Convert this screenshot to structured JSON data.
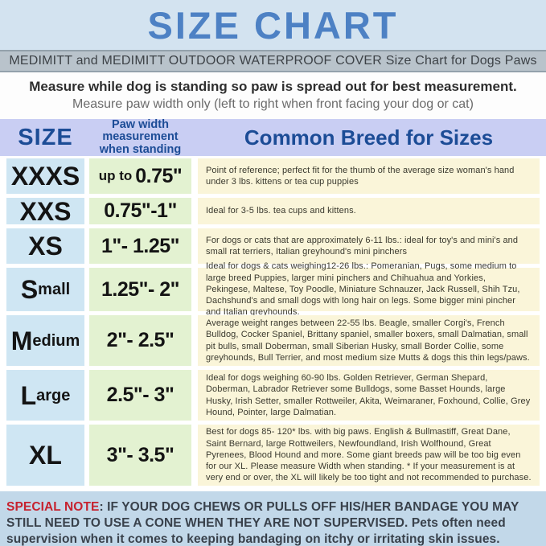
{
  "header": {
    "title": "SIZE CHART",
    "subtitle": "MEDIMITT and MEDIMITT OUTDOOR WATERPROOF COVER Size Chart for Dogs Paws",
    "instruction_bold": "Measure while dog is standing so paw is spread out for best measurement.",
    "instruction_regular": "Measure paw width only (left to right when front facing your dog or cat)"
  },
  "table": {
    "columns": {
      "size": "SIZE",
      "width_lines": [
        "Paw width",
        "measurement",
        "when standing"
      ],
      "breed": "Common Breed for Sizes"
    },
    "rows": [
      {
        "size_initial": "XXXS",
        "size_rest": "",
        "width_prefix": "up to",
        "width_value": "0.75\"",
        "description": "Point of reference; perfect fit for the thumb of the average size woman's hand under 3 lbs. kittens or tea cup puppies"
      },
      {
        "size_initial": "XXS",
        "size_rest": "",
        "width_prefix": "",
        "width_value": "0.75\"-1\"",
        "description": "Ideal for 3-5 lbs. tea cups and kittens."
      },
      {
        "size_initial": "XS",
        "size_rest": "",
        "width_prefix": "",
        "width_value": "1\"- 1.25\"",
        "description": "For dogs or cats that are approximately 6-11 lbs.: ideal for toy's and mini's and small rat terriers, Italian greyhound's mini pinchers"
      },
      {
        "size_initial": "S",
        "size_rest": "mall",
        "width_prefix": "",
        "width_value": "1.25\"- 2\"",
        "description": "Ideal for dogs & cats weighing12-26 lbs.: Pomeranian, Pugs, some medium to large breed Puppies, larger mini pinchers and Chihuahua and Yorkies, Pekingese, Maltese, Toy Poodle, Miniature Schnauzer, Jack Russell, Shih Tzu, Dachshund's and small dogs with long hair on legs. Some bigger mini pincher and Italian greyhounds."
      },
      {
        "size_initial": "M",
        "size_rest": "edium",
        "width_prefix": "",
        "width_value": "2\"- 2.5\"",
        "description": "Average weight ranges between 22-55 lbs. Beagle, smaller Corgi's, French Bulldog, Cocker Spaniel, Brittany spaniel, smaller boxers, small Dalmatian, small pit bulls, small Doberman, small Siberian Husky, small Border Collie, some greyhounds, Bull Terrier, and most medium size Mutts & dogs this thin legs/paws."
      },
      {
        "size_initial": "L",
        "size_rest": "arge",
        "width_prefix": "",
        "width_value": "2.5\"- 3\"",
        "description": "Ideal for dogs weighing 60-90 lbs. Golden Retriever, German Shepard, Doberman, Labrador Retriever some Bulldogs, some Basset Hounds, large Husky, Irish Setter, smaller Rottweiler, Akita, Weimaraner, Foxhound, Collie, Grey Hound, Pointer, large Dalmatian."
      },
      {
        "size_initial": "XL",
        "size_rest": "",
        "width_prefix": "",
        "width_value": "3\"- 3.5\"",
        "description": "Best for dogs 85- 120* lbs. with big paws. English & Bullmastiff, Great Dane, Saint Bernard, large Rottweilers, Newfoundland, Irish Wolfhound, Great Pyrenees, Blood Hound and more. Some giant breeds paw will be too big even for our XL. Please measure Width when standing. * If your measurement is at very end or over, the XL will likely be too tight and not recommended to purchase."
      }
    ]
  },
  "note": {
    "label": "SPECIAL NOTE",
    "text": ":  IF YOUR DOG CHEWS OR PULLS OFF HIS/HER BANDAGE YOU MAY STILL NEED TO USE A CONE WHEN THEY ARE NOT SUPERVISED. Pets often need supervision when it comes to keeping bandaging on itchy or irritating skin issues."
  },
  "colors": {
    "top_background": "#d3e3f0",
    "title_blue": "#4d81c4",
    "subtitle_bar_background": "#b9c3cb",
    "header_lavender": "#c9cef3",
    "header_text_navy": "#1c4c96",
    "size_column_blue": "#cfe6f3",
    "width_column_green": "#e3f2d1",
    "breed_column_cream": "#faf5d9",
    "note_background": "#c2d8e9",
    "note_red": "#c6222f"
  }
}
